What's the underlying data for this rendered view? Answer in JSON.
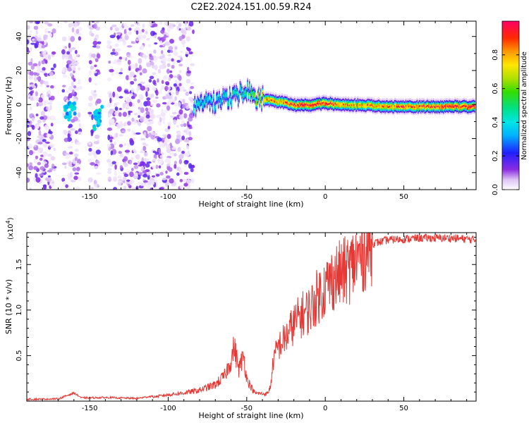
{
  "title": "C2E2.2024.151.00.59.R24",
  "colors": {
    "snr_line": "#e53935"
  },
  "chart_data": [
    {
      "type": "heatmap",
      "xlabel": "Height of straight line (km)",
      "ylabel": "Frequency (Hz)",
      "xlim": [
        -190,
        96
      ],
      "ylim": [
        -50,
        49
      ],
      "x_ticks": [
        -150,
        -100,
        -50,
        0,
        50
      ],
      "y_ticks": [
        -40,
        -20,
        0,
        20,
        40
      ],
      "colorbar": {
        "label": "Normalized spectral amplitude",
        "range": [
          0,
          1
        ],
        "ticks": [
          0.0,
          0.2,
          0.4,
          0.6,
          0.8
        ],
        "colormap": "rainbow"
      },
      "signal_ridge": {
        "x": [
          -84,
          -70,
          -60,
          -50,
          -40,
          -30,
          -20,
          -10,
          0,
          10,
          20,
          40,
          60,
          80,
          95
        ],
        "freq": [
          0,
          2,
          5,
          8,
          3,
          2,
          0,
          0,
          1,
          0,
          0,
          -1,
          -1,
          -1,
          -1
        ],
        "amplitude": [
          0.45,
          0.4,
          0.45,
          0.5,
          0.8,
          0.85,
          0.9,
          0.95,
          0.95,
          0.85,
          0.8,
          0.85,
          0.9,
          0.95,
          0.95
        ]
      }
    },
    {
      "type": "line",
      "xlabel": "Height of straight line (km)",
      "ylabel": "SNR (10 * v/v)",
      "y_multiplier": "(x10",
      "y_multiplier_exp": "4",
      "y_multiplier_close": ")",
      "xlim": [
        -190,
        96
      ],
      "ylim": [
        0,
        18500
      ],
      "x_ticks": [
        -150,
        -100,
        -50,
        0,
        50
      ],
      "y_ticks": [
        0.5,
        1.0,
        1.5
      ],
      "y_tick_labels": [
        "0.5",
        "1.0",
        "1.5"
      ],
      "y_tick_values": [
        5000,
        10000,
        15000
      ],
      "series": [
        {
          "x": [
            -190,
            -170,
            -160,
            -155,
            -140,
            -120,
            -100,
            -90,
            -80,
            -70,
            -64,
            -60,
            -58,
            -55,
            -52,
            -50,
            -47,
            -45,
            -40,
            -37,
            -35,
            -33,
            -30,
            -25,
            -20,
            -15,
            -10,
            -5,
            0,
            5,
            10,
            15,
            20,
            25,
            30,
            40,
            50,
            60,
            70,
            80,
            90,
            96
          ],
          "y": [
            100,
            150,
            800,
            250,
            300,
            200,
            700,
            900,
            1200,
            1800,
            2800,
            4500,
            6000,
            3500,
            5000,
            2500,
            1500,
            900,
            800,
            800,
            1500,
            4500,
            6000,
            7000,
            8500,
            9500,
            10000,
            11500,
            12500,
            13500,
            14000,
            14500,
            15500,
            16500,
            17300,
            17700,
            17800,
            17900,
            17900,
            17900,
            17800,
            17700
          ]
        }
      ]
    }
  ]
}
